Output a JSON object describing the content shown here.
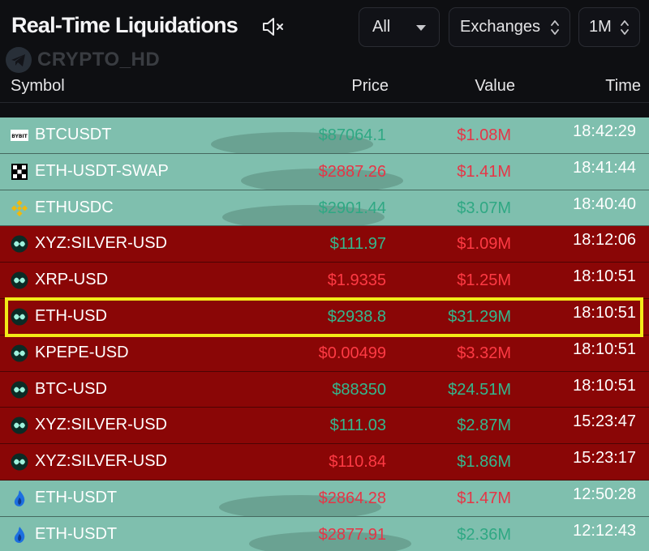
{
  "header": {
    "title": "Real-Time Liquidations",
    "mute_icon": "speaker-muted-icon",
    "filter_side": {
      "selected": "All"
    },
    "filter_exchange": {
      "selected": "Exchanges"
    },
    "filter_timeframe": {
      "selected": "1M"
    }
  },
  "watermark": {
    "text": "CRYPTO_HD",
    "icon": "telegram-icon"
  },
  "columns": {
    "symbol": "Symbol",
    "price": "Price",
    "value": "Value",
    "time": "Time"
  },
  "colors": {
    "long_row_bg": "#7fbfae",
    "short_row_bg": "#8a0606",
    "value_green": "#2fa883",
    "value_red": "#f0323b",
    "highlight_border": "#f2ea17"
  },
  "rows": [
    {
      "exchange_icon": "bybit-icon",
      "symbol": "BTCUSDT",
      "price": "$87064.1",
      "price_color": "green",
      "value": "$1.08M",
      "value_color": "red",
      "time": "18:42:29",
      "side": "long",
      "highlighted": false
    },
    {
      "exchange_icon": "okx-icon",
      "symbol": "ETH-USDT-SWAP",
      "price": "$2887.26",
      "price_color": "red",
      "value": "$1.41M",
      "value_color": "red",
      "time": "18:41:44",
      "side": "long",
      "highlighted": false
    },
    {
      "exchange_icon": "binance-icon",
      "symbol": "ETHUSDC",
      "price": "$2901.44",
      "price_color": "green",
      "value": "$3.07M",
      "value_color": "green",
      "time": "18:40:40",
      "side": "long",
      "highlighted": false
    },
    {
      "exchange_icon": "hyperliquid-icon",
      "symbol": "XYZ:SILVER-USD",
      "price": "$111.97",
      "price_color": "green",
      "value": "$1.09M",
      "value_color": "red",
      "time": "18:12:06",
      "side": "short",
      "highlighted": false
    },
    {
      "exchange_icon": "hyperliquid-icon",
      "symbol": "XRP-USD",
      "price": "$1.9335",
      "price_color": "red",
      "value": "$1.25M",
      "value_color": "red",
      "time": "18:10:51",
      "side": "short",
      "highlighted": false
    },
    {
      "exchange_icon": "hyperliquid-icon",
      "symbol": "ETH-USD",
      "price": "$2938.8",
      "price_color": "green",
      "value": "$31.29M",
      "value_color": "green",
      "time": "18:10:51",
      "side": "short",
      "highlighted": true
    },
    {
      "exchange_icon": "hyperliquid-icon",
      "symbol": "KPEPE-USD",
      "price": "$0.00499",
      "price_color": "red",
      "value": "$3.32M",
      "value_color": "red",
      "time": "18:10:51",
      "side": "short",
      "highlighted": false
    },
    {
      "exchange_icon": "hyperliquid-icon",
      "symbol": "BTC-USD",
      "price": "$88350",
      "price_color": "green",
      "value": "$24.51M",
      "value_color": "green",
      "time": "18:10:51",
      "side": "short",
      "highlighted": false
    },
    {
      "exchange_icon": "hyperliquid-icon",
      "symbol": "XYZ:SILVER-USD",
      "price": "$111.03",
      "price_color": "green",
      "value": "$2.87M",
      "value_color": "green",
      "time": "15:23:47",
      "side": "short",
      "highlighted": false
    },
    {
      "exchange_icon": "hyperliquid-icon",
      "symbol": "XYZ:SILVER-USD",
      "price": "$110.84",
      "price_color": "red",
      "value": "$1.86M",
      "value_color": "green",
      "time": "15:23:17",
      "side": "short",
      "highlighted": false
    },
    {
      "exchange_icon": "huobi-icon",
      "symbol": "ETH-USDT",
      "price": "$2864.28",
      "price_color": "red",
      "value": "$1.47M",
      "value_color": "red",
      "time": "12:50:28",
      "side": "long",
      "highlighted": false
    },
    {
      "exchange_icon": "huobi-icon",
      "symbol": "ETH-USDT",
      "price": "$2877.91",
      "price_color": "red",
      "value": "$2.36M",
      "value_color": "green",
      "time": "12:12:43",
      "side": "long",
      "highlighted": false
    }
  ]
}
